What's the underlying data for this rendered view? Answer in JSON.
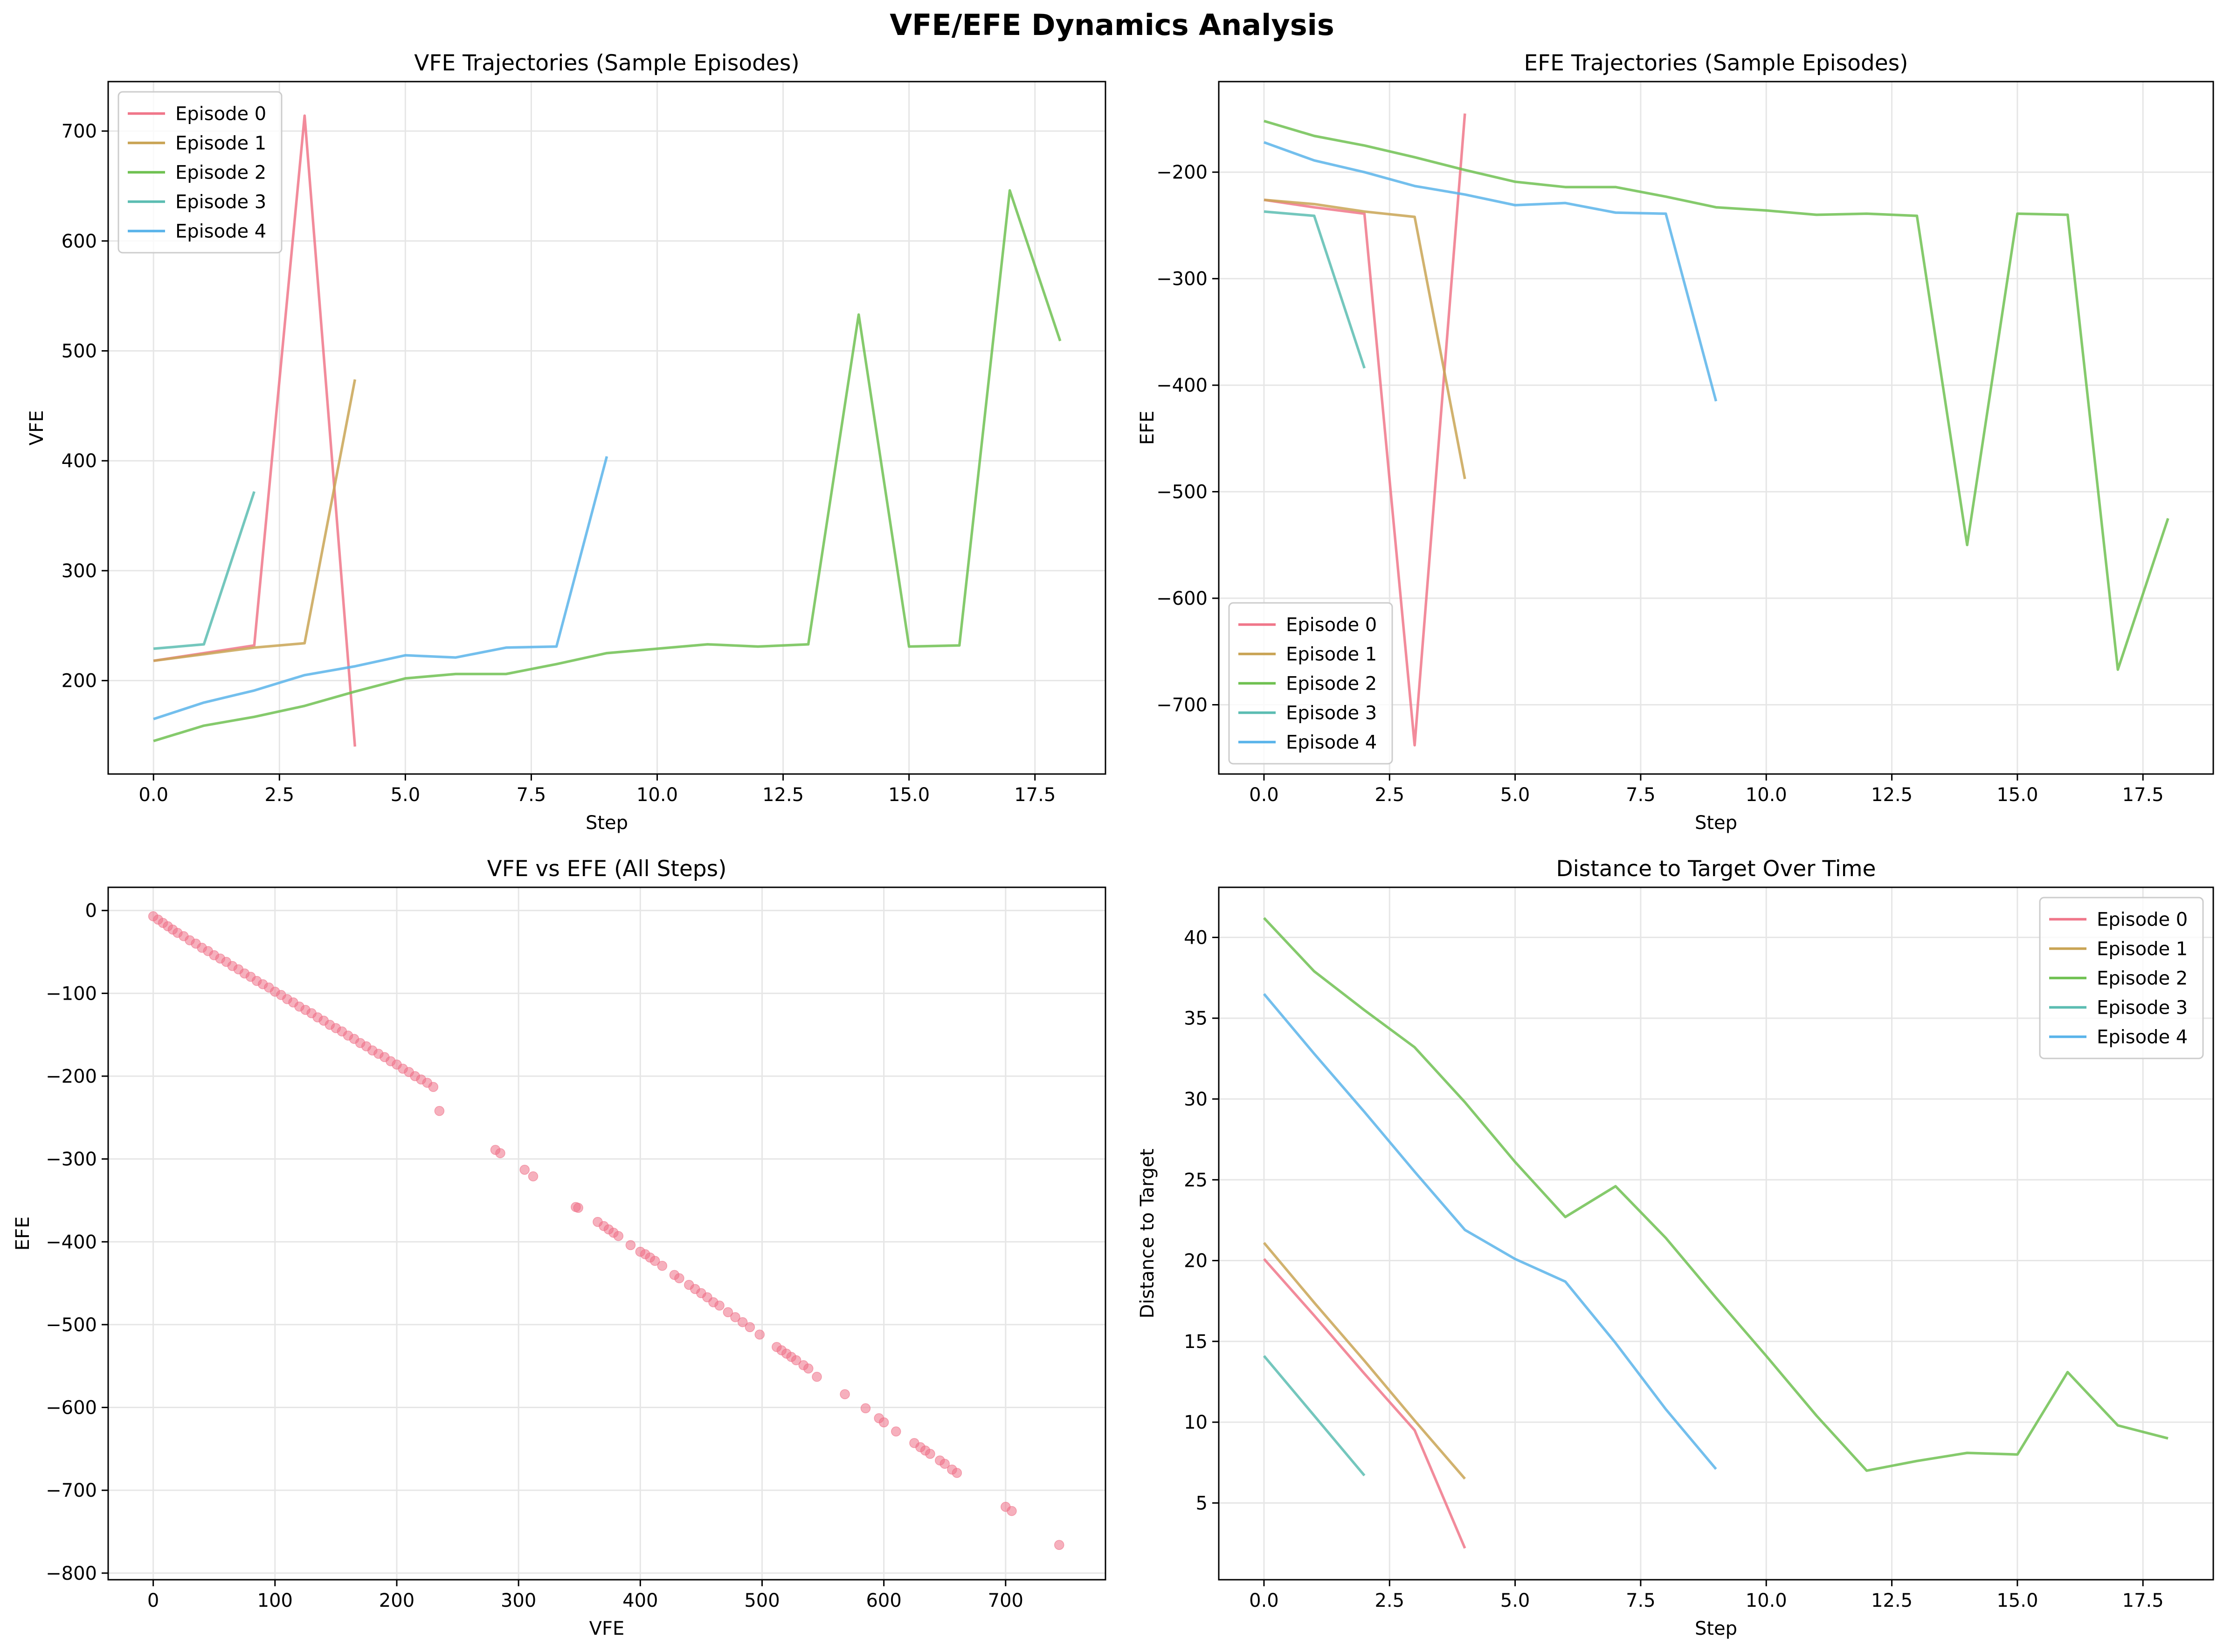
{
  "figure": {
    "suptitle": "VFE/EFE Dynamics Analysis"
  },
  "colors": {
    "episode_0": "#f0778a",
    "episode_1": "#c9a455",
    "episode_2": "#70c152",
    "episode_3": "#5cbdb2",
    "episode_4": "#5ab4ea",
    "scatter": "#ef6f87",
    "grid": "#e6e6e6"
  },
  "chart_data": [
    {
      "id": "vfe",
      "type": "line",
      "title": "VFE Trajectories (Sample Episodes)",
      "xlabel": "Step",
      "ylabel": "VFE",
      "xlim": [
        -0.9,
        18.9
      ],
      "ylim": [
        115,
        745
      ],
      "xticks": [
        0,
        2.5,
        5,
        7.5,
        10,
        12.5,
        15,
        17.5
      ],
      "xtick_labels": [
        "0.0",
        "2.5",
        "5.0",
        "7.5",
        "10.0",
        "12.5",
        "15.0",
        "17.5"
      ],
      "yticks": [
        200,
        300,
        400,
        500,
        600,
        700
      ],
      "ytick_labels": [
        "200",
        "300",
        "400",
        "500",
        "600",
        "700"
      ],
      "grid": true,
      "legend": "top-left",
      "series": [
        {
          "name": "Episode 0",
          "x": [
            0,
            1,
            2,
            3,
            4
          ],
          "y": [
            218,
            225,
            232,
            714,
            140
          ]
        },
        {
          "name": "Episode 1",
          "x": [
            0,
            1,
            2,
            3,
            4
          ],
          "y": [
            218,
            224,
            230,
            234,
            474
          ]
        },
        {
          "name": "Episode 2",
          "x": [
            0,
            1,
            2,
            3,
            4,
            5,
            6,
            7,
            8,
            9,
            10,
            11,
            12,
            13,
            14,
            15,
            16,
            17,
            18
          ],
          "y": [
            145,
            159,
            167,
            177,
            190,
            202,
            206,
            206,
            215,
            225,
            229,
            233,
            231,
            233,
            533,
            231,
            232,
            646,
            509
          ]
        },
        {
          "name": "Episode 3",
          "x": [
            0,
            1,
            2
          ],
          "y": [
            229,
            233,
            372
          ]
        },
        {
          "name": "Episode 4",
          "x": [
            0,
            1,
            2,
            3,
            4,
            5,
            6,
            7,
            8,
            9
          ],
          "y": [
            165,
            180,
            191,
            205,
            213,
            223,
            221,
            230,
            231,
            404
          ]
        }
      ]
    },
    {
      "id": "efe",
      "type": "line",
      "title": "EFE Trajectories (Sample Episodes)",
      "xlabel": "Step",
      "ylabel": "EFE",
      "xlim": [
        -0.9,
        18.9
      ],
      "ylim": [
        -765,
        -115
      ],
      "xticks": [
        0,
        2.5,
        5,
        7.5,
        10,
        12.5,
        15,
        17.5
      ],
      "xtick_labels": [
        "0.0",
        "2.5",
        "5.0",
        "7.5",
        "10.0",
        "12.5",
        "15.0",
        "17.5"
      ],
      "yticks": [
        -700,
        -600,
        -500,
        -400,
        -300,
        -200
      ],
      "ytick_labels": [
        "−700",
        "−600",
        "−500",
        "−400",
        "−300",
        "−200"
      ],
      "grid": true,
      "legend": "bottom-left",
      "series": [
        {
          "name": "Episode 0",
          "x": [
            0,
            1,
            2,
            3,
            4
          ],
          "y": [
            -226,
            -233,
            -239,
            -738,
            -145
          ]
        },
        {
          "name": "Episode 1",
          "x": [
            0,
            1,
            2,
            3,
            4
          ],
          "y": [
            -226,
            -230,
            -237,
            -242,
            -488
          ]
        },
        {
          "name": "Episode 2",
          "x": [
            0,
            1,
            2,
            3,
            4,
            5,
            6,
            7,
            8,
            9,
            10,
            11,
            12,
            13,
            14,
            15,
            16,
            17,
            18
          ],
          "y": [
            -152,
            -166,
            -175,
            -186,
            -198,
            -209,
            -214,
            -214,
            -223,
            -233,
            -236,
            -240,
            -239,
            -241,
            -550,
            -239,
            -240,
            -667,
            -525
          ]
        },
        {
          "name": "Episode 3",
          "x": [
            0,
            1,
            2
          ],
          "y": [
            -237,
            -241,
            -384
          ]
        },
        {
          "name": "Episode 4",
          "x": [
            0,
            1,
            2,
            3,
            4,
            5,
            6,
            7,
            8,
            9
          ],
          "y": [
            -172,
            -189,
            -200,
            -213,
            -221,
            -231,
            -229,
            -238,
            -239,
            -415
          ]
        }
      ]
    },
    {
      "id": "scatter",
      "type": "scatter",
      "title": "VFE vs EFE (All Steps)",
      "xlabel": "VFE",
      "ylabel": "EFE",
      "xlim": [
        -37,
        782
      ],
      "ylim": [
        -808,
        28
      ],
      "xticks": [
        0,
        100,
        200,
        300,
        400,
        500,
        600,
        700
      ],
      "xtick_labels": [
        "0",
        "100",
        "200",
        "300",
        "400",
        "500",
        "600",
        "700"
      ],
      "yticks": [
        -800,
        -700,
        -600,
        -500,
        -400,
        -300,
        -200,
        -100,
        0
      ],
      "ytick_labels": [
        "−800",
        "−700",
        "−600",
        "−500",
        "−400",
        "−300",
        "−200",
        "−100",
        "0"
      ],
      "grid": true,
      "points": {
        "x": [
          0,
          4,
          8,
          12,
          16,
          20,
          25,
          30,
          35,
          40,
          45,
          50,
          55,
          60,
          65,
          70,
          75,
          80,
          85,
          90,
          95,
          100,
          105,
          110,
          115,
          120,
          125,
          130,
          135,
          140,
          145,
          150,
          155,
          160,
          165,
          170,
          175,
          180,
          185,
          190,
          195,
          200,
          205,
          210,
          215,
          220,
          225,
          230,
          235,
          281,
          285,
          305,
          312,
          347,
          349,
          365,
          370,
          374,
          378,
          382,
          392,
          400,
          404,
          408,
          412,
          418,
          428,
          432,
          440,
          445,
          450,
          455,
          460,
          465,
          472,
          478,
          484,
          490,
          498,
          512,
          516,
          520,
          524,
          528,
          534,
          538,
          545,
          568,
          585,
          596,
          600,
          610,
          625,
          630,
          634,
          638,
          646,
          650,
          656,
          660,
          700,
          705,
          744
        ],
        "y": [
          -7,
          -11,
          -15,
          -19,
          -23,
          -27,
          -31,
          -36,
          -40,
          -45,
          -49,
          -54,
          -58,
          -62,
          -67,
          -71,
          -76,
          -80,
          -85,
          -89,
          -93,
          -98,
          -102,
          -107,
          -111,
          -116,
          -120,
          -124,
          -129,
          -133,
          -138,
          -142,
          -146,
          -151,
          -155,
          -160,
          -164,
          -169,
          -173,
          -177,
          -182,
          -186,
          -191,
          -195,
          -200,
          -204,
          -208,
          -213,
          -242,
          -289,
          -293,
          -313,
          -321,
          -358,
          -359,
          -376,
          -381,
          -385,
          -389,
          -393,
          -404,
          -412,
          -415,
          -419,
          -423,
          -429,
          -440,
          -444,
          -452,
          -457,
          -462,
          -467,
          -473,
          -477,
          -485,
          -491,
          -497,
          -503,
          -512,
          -527,
          -531,
          -535,
          -539,
          -543,
          -549,
          -553,
          -563,
          -584,
          -601,
          -613,
          -618,
          -629,
          -643,
          -648,
          -652,
          -656,
          -664,
          -668,
          -675,
          -679,
          -720,
          -725,
          -766
        ]
      }
    },
    {
      "id": "distance",
      "type": "line",
      "title": "Distance to Target Over Time",
      "xlabel": "Step",
      "ylabel": "Distance to Target",
      "xlim": [
        -0.9,
        18.9
      ],
      "ylim": [
        0.25,
        43.1
      ],
      "xticks": [
        0,
        2.5,
        5,
        7.5,
        10,
        12.5,
        15,
        17.5
      ],
      "xtick_labels": [
        "0.0",
        "2.5",
        "5.0",
        "7.5",
        "10.0",
        "12.5",
        "15.0",
        "17.5"
      ],
      "yticks": [
        5,
        10,
        15,
        20,
        25,
        30,
        35,
        40
      ],
      "ytick_labels": [
        "5",
        "10",
        "15",
        "20",
        "25",
        "30",
        "35",
        "40"
      ],
      "grid": true,
      "legend": "top-right",
      "series": [
        {
          "name": "Episode 0",
          "x": [
            0,
            1,
            2,
            3,
            4
          ],
          "y": [
            20.1,
            16.6,
            13.0,
            9.5,
            2.2
          ]
        },
        {
          "name": "Episode 1",
          "x": [
            0,
            1,
            2,
            3,
            4
          ],
          "y": [
            21.1,
            17.4,
            13.8,
            10.1,
            6.5
          ]
        },
        {
          "name": "Episode 2",
          "x": [
            0,
            1,
            2,
            3,
            4,
            5,
            6,
            7,
            8,
            9,
            10,
            11,
            12,
            13,
            14,
            15,
            16,
            17,
            18
          ],
          "y": [
            41.2,
            37.9,
            35.5,
            33.2,
            29.8,
            26.1,
            22.7,
            24.6,
            21.4,
            17.7,
            14.1,
            10.4,
            7.0,
            7.6,
            8.1,
            8.0,
            13.1,
            9.8,
            9.0
          ]
        },
        {
          "name": "Episode 3",
          "x": [
            0,
            1,
            2
          ],
          "y": [
            14.1,
            10.4,
            6.7
          ]
        },
        {
          "name": "Episode 4",
          "x": [
            0,
            1,
            2,
            3,
            4,
            5,
            6,
            7,
            8,
            9
          ],
          "y": [
            36.5,
            32.8,
            29.2,
            25.5,
            21.9,
            20.1,
            18.7,
            14.9,
            10.8,
            7.1
          ]
        }
      ]
    }
  ]
}
